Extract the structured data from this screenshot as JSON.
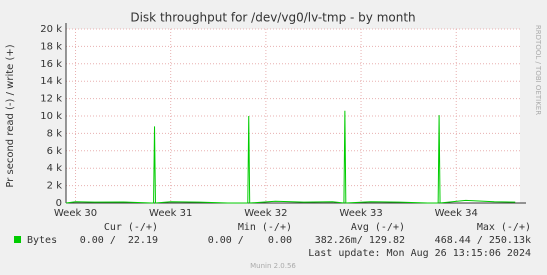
{
  "chart_data": {
    "type": "line",
    "title": "Disk throughput for /dev/vg0/lv-tmp - by month",
    "y_label": "Pr second read (-) / write (+)",
    "side_label": "RRDTOOL / TOBI OETIKER",
    "xlim": [
      29.9,
      34.67
    ],
    "xticks": [
      {
        "value": 30,
        "label": "Week 30"
      },
      {
        "value": 31,
        "label": "Week 31"
      },
      {
        "value": 32,
        "label": "Week 32"
      },
      {
        "value": 33,
        "label": "Week 33"
      },
      {
        "value": 34,
        "label": "Week 34"
      }
    ],
    "ylim": [
      0,
      20000
    ],
    "yticks": [
      0,
      {
        "value": 2000,
        "label": "2 k"
      },
      {
        "value": 4000,
        "label": "4 k"
      },
      {
        "value": 6000,
        "label": "6 k"
      },
      {
        "value": 8000,
        "label": "8 k"
      },
      {
        "value": 10000,
        "label": "10 k"
      },
      {
        "value": 12000,
        "label": "12 k"
      },
      {
        "value": 14000,
        "label": "14 k"
      },
      {
        "value": 16000,
        "label": "16 k"
      },
      {
        "value": 18000,
        "label": "18 k"
      },
      {
        "value": 20000,
        "label": "20 k"
      }
    ],
    "grid": true,
    "x": [
      29.9,
      30.0,
      30.2,
      30.5,
      30.8,
      30.82,
      30.83,
      30.84,
      31.0,
      31.3,
      31.6,
      31.81,
      31.82,
      31.83,
      32.1,
      32.4,
      32.7,
      32.82,
      32.83,
      32.84,
      33.1,
      33.4,
      33.7,
      33.81,
      33.82,
      33.83,
      34.1,
      34.4,
      34.62
    ],
    "series": [
      {
        "name": "Bytes",
        "color": "#00cc00",
        "values": [
          0,
          150,
          100,
          120,
          0,
          0,
          8800,
          0,
          150,
          100,
          0,
          0,
          10000,
          0,
          200,
          100,
          150,
          0,
          10600,
          0,
          150,
          100,
          0,
          0,
          10100,
          0,
          300,
          150,
          100
        ]
      }
    ],
    "legend_headers": [
      "Cur (-/+)",
      "Min (-/+)",
      "Avg (-/+)",
      "Max (-/+)"
    ],
    "legend_rows": [
      [
        "0.00 /  22.19",
        "0.00 /    0.00",
        "382.26m/ 129.82",
        "468.44 / 250.13k"
      ]
    ],
    "last_update": "Last update: Mon Aug 26 13:15:06 2024",
    "footer": "Munin 2.0.56"
  }
}
